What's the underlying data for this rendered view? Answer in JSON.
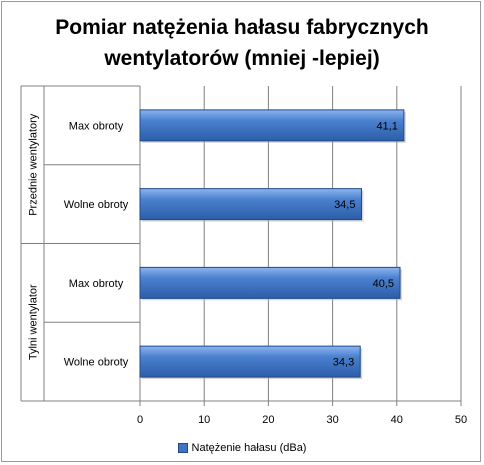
{
  "chart_data": {
    "type": "bar",
    "orientation": "horizontal",
    "title": "Pomiar natężenia hałasu fabrycznych wentylatorów (mniej -lepiej)",
    "title_lines": [
      "Pomiar natężenia hałasu fabrycznych",
      "wentylatorów (mniej -lepiej)"
    ],
    "groups": [
      {
        "label": "Przednie wentylatory",
        "categories": [
          "Max obroty",
          "Wolne obroty"
        ]
      },
      {
        "label": "Tylni wentylator",
        "categories": [
          "Max obroty",
          "Wolne obroty"
        ]
      }
    ],
    "categories": [
      "Max obroty",
      "Wolne obroty",
      "Max obroty",
      "Wolne obroty"
    ],
    "series": [
      {
        "name": "Natężenie hałasu (dBa)",
        "values": [
          41.1,
          34.5,
          40.5,
          34.3
        ],
        "labels": [
          "41,1",
          "34,5",
          "40,5",
          "34,3"
        ]
      }
    ],
    "xlim": [
      0,
      50
    ],
    "xticks": [
      0,
      10,
      20,
      30,
      40,
      50
    ],
    "grid": true,
    "legend_position": "bottom",
    "colors": {
      "bar": "#3f74c4",
      "bar_dark": "#1f4a8a",
      "bar_light": "#7aa6e6",
      "grid": "#808080"
    }
  }
}
